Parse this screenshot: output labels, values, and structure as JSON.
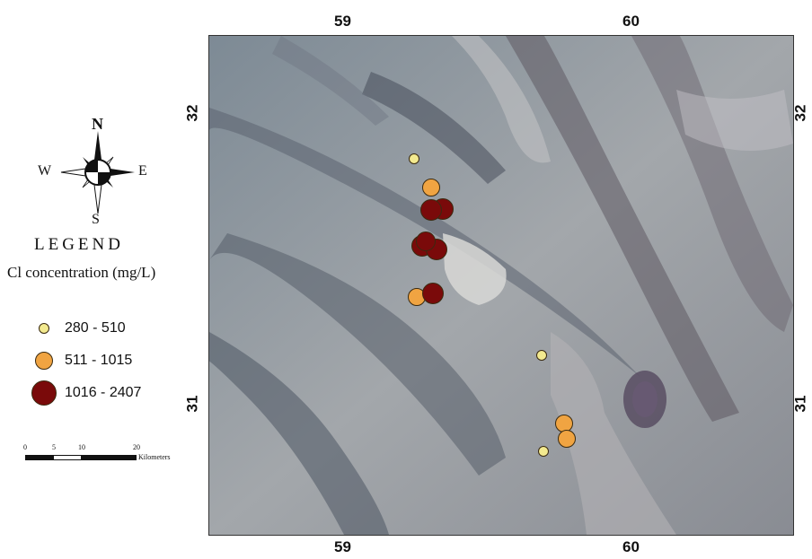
{
  "map": {
    "top_ticks": [
      "59",
      "60"
    ],
    "bottom_ticks": [
      "59",
      "60"
    ],
    "left_ticks": [
      "32",
      "31"
    ],
    "right_ticks": [
      "32",
      "31"
    ]
  },
  "compass": {
    "n": "N",
    "s": "S",
    "e": "E",
    "w": "W"
  },
  "legend": {
    "title": "LEGEND",
    "subtitle": "Cl concentration (mg/L)",
    "classes": [
      {
        "label": "280 - 510",
        "color": "#f3ea8f"
      },
      {
        "label": "511 - 1015",
        "color": "#f0a442"
      },
      {
        "label": "1016 - 2407",
        "color": "#7a0a0a"
      }
    ]
  },
  "scale_bar": {
    "ticks": [
      "0",
      "5",
      "10",
      "20"
    ],
    "unit": "Kilometers"
  }
}
